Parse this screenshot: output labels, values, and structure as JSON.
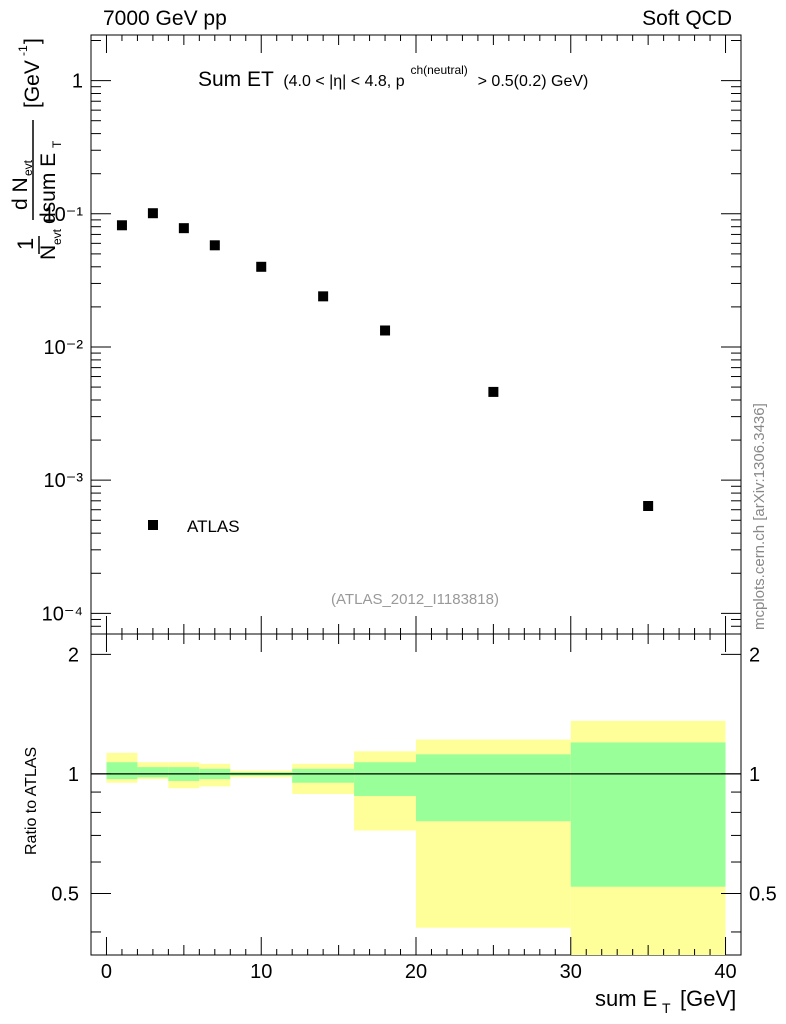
{
  "header": {
    "left": "7000 GeV pp",
    "right": "Soft QCD"
  },
  "side_label": "mcplots.cern.ch [arXiv:1306.3436]",
  "chart_data": {
    "type": "scatter",
    "title": "Sum ET",
    "title_detail": "(4.0 < |η| < 4.8, p",
    "title_sup": "ch(neutral)",
    "title_tail": "> 0.5(0.2) GeV)",
    "analysis_id": "(ATLAS_2012_I1183818)",
    "ylabel_main": "1/N_evt dN_evt/dsum E_T [GeV^-1]",
    "ylabel_ratio": "Ratio to ATLAS",
    "xlabel": "sum E_T [GeV]",
    "xlim": [
      -1,
      41
    ],
    "ylim_main": [
      7e-05,
      2.2
    ],
    "ylim_ratio": [
      0.35,
      2.25
    ],
    "y_ticks_main": [
      "1",
      "10⁻¹",
      "10⁻²",
      "10⁻³",
      "10⁻⁴"
    ],
    "x_ticks": [
      "0",
      "10",
      "20",
      "30",
      "40"
    ],
    "ratio_ticks": [
      "0.5",
      "1",
      "2"
    ],
    "legend": {
      "label": "ATLAS",
      "position": "lower-left"
    },
    "series": [
      {
        "name": "ATLAS",
        "x": [
          1,
          3,
          5,
          7,
          10,
          14,
          18,
          25,
          35
        ],
        "y": [
          0.082,
          0.101,
          0.078,
          0.058,
          0.04,
          0.024,
          0.0133,
          0.0046,
          0.00064
        ]
      }
    ],
    "ratio_bands": [
      {
        "xlo": 0,
        "xhi": 2,
        "green": [
          0.97,
          1.07
        ],
        "yellow": [
          0.95,
          1.13
        ]
      },
      {
        "xlo": 2,
        "xhi": 4,
        "green": [
          0.98,
          1.04
        ],
        "yellow": [
          0.97,
          1.07
        ]
      },
      {
        "xlo": 4,
        "xhi": 6,
        "green": [
          0.96,
          1.04
        ],
        "yellow": [
          0.92,
          1.07
        ]
      },
      {
        "xlo": 6,
        "xhi": 8,
        "green": [
          0.97,
          1.03
        ],
        "yellow": [
          0.93,
          1.06
        ]
      },
      {
        "xlo": 8,
        "xhi": 12,
        "green": [
          0.99,
          1.01
        ],
        "yellow": [
          0.98,
          1.02
        ]
      },
      {
        "xlo": 12,
        "xhi": 16,
        "green": [
          0.95,
          1.03
        ],
        "yellow": [
          0.89,
          1.06
        ]
      },
      {
        "xlo": 16,
        "xhi": 20,
        "green": [
          0.88,
          1.07
        ],
        "yellow": [
          0.72,
          1.14
        ]
      },
      {
        "xlo": 20,
        "xhi": 30,
        "green": [
          0.76,
          1.12
        ],
        "yellow": [
          0.41,
          1.22
        ]
      },
      {
        "xlo": 30,
        "xhi": 40,
        "green": [
          0.52,
          1.2
        ],
        "yellow": [
          0.35,
          1.36
        ]
      }
    ]
  }
}
